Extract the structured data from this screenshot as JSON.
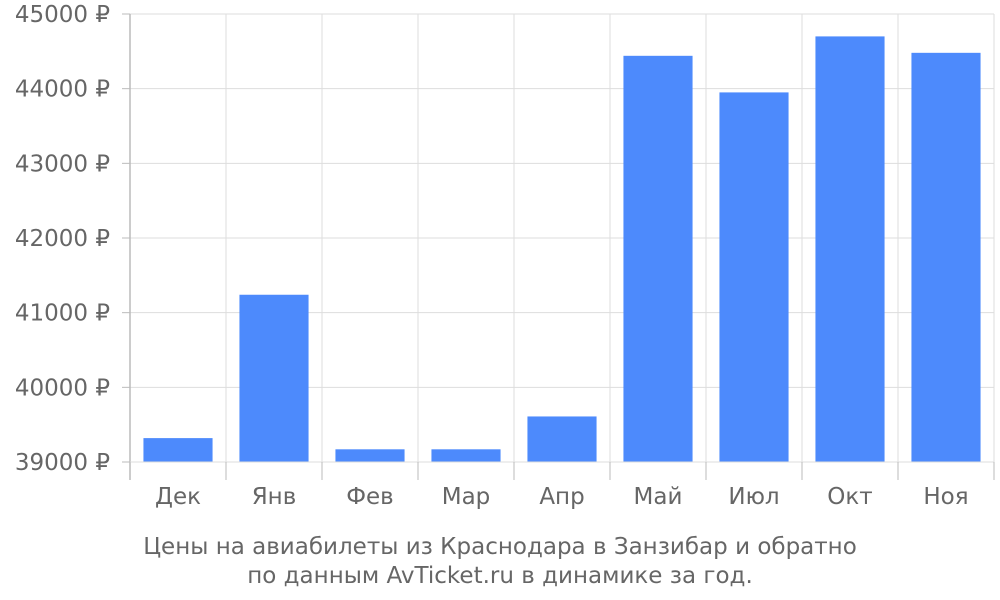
{
  "chart_data": {
    "type": "bar",
    "categories": [
      "Дек",
      "Янв",
      "Фев",
      "Мар",
      "Апр",
      "Май",
      "Июл",
      "Окт",
      "Ноя"
    ],
    "values": [
      39320,
      41240,
      39170,
      39170,
      39610,
      44440,
      43950,
      44700,
      44480
    ],
    "ylim": [
      39000,
      45000
    ],
    "yticks": [
      39000,
      40000,
      41000,
      42000,
      43000,
      44000,
      45000
    ],
    "y_unit_suffix": " ₽",
    "grid": true,
    "bar_color": "#4d8afc",
    "caption_line1": "Цены на авиабилеты из Краснодара в Занзибар и обратно",
    "caption_line2": "по данным AvTicket.ru в динамике за год."
  }
}
